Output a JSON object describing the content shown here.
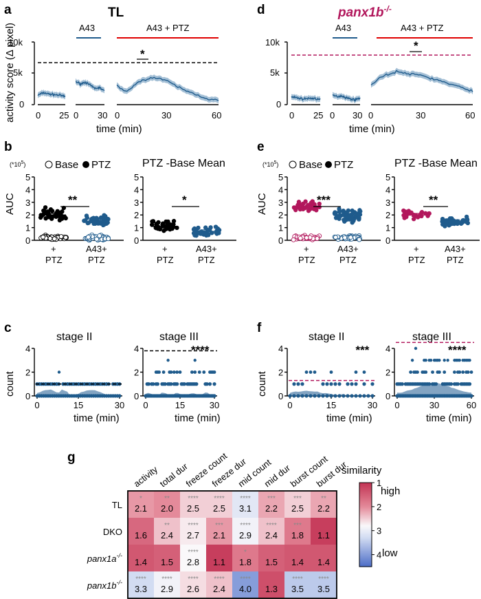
{
  "colors": {
    "tl": "#1f5b8c",
    "tl_fill": "#5a86ad",
    "ko": "#b2175c",
    "black": "#000000",
    "red": "#e00000",
    "blue_line": "#1f5b8c"
  },
  "panels": {
    "a": {
      "letter": "a",
      "title": "TL"
    },
    "d": {
      "letter": "d",
      "title": "panx1b",
      "title_sup": "-/-"
    },
    "b": {
      "letter": "b"
    },
    "e": {
      "letter": "e"
    },
    "c": {
      "letter": "c"
    },
    "f": {
      "letter": "f"
    },
    "g": {
      "letter": "g"
    }
  },
  "top": {
    "ylabel": "activity score (Δ pixel)",
    "xlabel": "time (min)",
    "yticks": [
      "10k",
      "5k",
      "0"
    ],
    "seg1_ticks": [
      "0",
      "25"
    ],
    "seg2_ticks": [
      "0",
      "30"
    ],
    "seg3_ticks": [
      "0",
      "30",
      "60"
    ],
    "bar_a43": "A43",
    "bar_a43ptz": "A43 + PTZ",
    "sig": "*"
  },
  "mid": {
    "ylabel": "AUC",
    "mult": "(*10",
    "mult_sup": "5",
    "mult_end": ")",
    "legend_base": "Base",
    "legend_ptz": "PTZ",
    "title_right": "PTZ -Base Mean",
    "yticks": [
      "5",
      "4",
      "3",
      "2",
      "1",
      "0"
    ],
    "xl1a": "+",
    "xl1b": "PTZ",
    "xl2a": "A43+",
    "xl2b": "PTZ",
    "sig_b1": "**",
    "sig_b2": "*",
    "sig_e1": "***",
    "sig_e2": "**"
  },
  "stage": {
    "t2": "stage II",
    "t3": "stage III",
    "ylabel": "count",
    "xlabel": "time (min)",
    "c_ticks": [
      "0",
      "15",
      "30"
    ],
    "f3_ticks": [
      "0",
      "30",
      "60"
    ],
    "sig_c3": "****",
    "sig_f2": "***",
    "sig_f3": "****"
  },
  "heatmap": {
    "legend_title": "similarity",
    "legend_high": "high",
    "legend_low": "low",
    "legend_ticks": [
      "1",
      "2",
      "3",
      "4"
    ],
    "cols": [
      "activity",
      "total dur",
      "freeze count",
      "freeze dur",
      "mid count",
      "mid dur",
      "burst count",
      "burst dur"
    ],
    "rows": [
      {
        "name": "TL",
        "sup": "",
        "vals": [
          2.1,
          2.0,
          2.5,
          2.5,
          3.1,
          2.2,
          2.5,
          2.2
        ],
        "stars": [
          "*",
          "**",
          "****",
          "****",
          "****",
          "***",
          "***",
          "**"
        ]
      },
      {
        "name": "DKO",
        "sup": "",
        "vals": [
          1.6,
          2.4,
          2.7,
          2.1,
          2.9,
          2.4,
          1.8,
          1.1
        ],
        "stars": [
          "",
          "**",
          "****",
          "***",
          "****",
          "****",
          "***",
          ""
        ]
      },
      {
        "name": "panx1a",
        "sup": "-/-",
        "vals": [
          1.4,
          1.5,
          2.8,
          1.1,
          1.8,
          1.5,
          1.4,
          1.4
        ],
        "stars": [
          "",
          "",
          "****",
          "",
          "*",
          "",
          "",
          ""
        ]
      },
      {
        "name": "panx1b",
        "sup": "-/-",
        "vals": [
          3.3,
          2.9,
          2.6,
          2.4,
          4.0,
          1.3,
          3.5,
          3.5
        ],
        "stars": [
          "****",
          "****",
          "****",
          "****",
          "****",
          "",
          "****",
          "****"
        ]
      }
    ]
  },
  "chart_data": [
    {
      "type": "line",
      "panel": "a",
      "title": "TL",
      "ylabel": "activity score (Δ pixel)",
      "xlabel": "time (min)",
      "ylim": [
        0,
        10000
      ],
      "series": [
        {
          "segment": "baseline",
          "x": [
            0,
            5,
            10,
            15,
            20,
            25
          ],
          "y": [
            1500,
            1900,
            1700,
            1600,
            1500,
            1300
          ]
        },
        {
          "segment": "A43",
          "x": [
            0,
            5,
            10,
            15,
            20,
            25,
            30
          ],
          "y": [
            3700,
            3300,
            3600,
            3100,
            2600,
            2700,
            2200
          ]
        },
        {
          "segment": "A43 + PTZ",
          "x": [
            0,
            5,
            10,
            15,
            20,
            25,
            30,
            35,
            40,
            45,
            50,
            55,
            60
          ],
          "y": [
            3000,
            2100,
            3000,
            3900,
            4300,
            4200,
            3700,
            3000,
            2300,
            1800,
            1300,
            800,
            700
          ]
        }
      ],
      "threshold": 6600,
      "sig": "*"
    },
    {
      "type": "line",
      "panel": "d",
      "title": "panx1b-/-",
      "ylabel": "activity score (Δ pixel)",
      "xlabel": "time (min)",
      "ylim": [
        0,
        10000
      ],
      "series": [
        {
          "segment": "baseline",
          "x": [
            0,
            5,
            10,
            15,
            20,
            25
          ],
          "y": [
            1200,
            1100,
            900,
            1000,
            1000,
            800
          ]
        },
        {
          "segment": "A43",
          "x": [
            0,
            5,
            10,
            15,
            20,
            25,
            30
          ],
          "y": [
            1500,
            1300,
            1400,
            1100,
            900,
            800,
            1100
          ]
        },
        {
          "segment": "A43 + PTZ",
          "x": [
            0,
            5,
            10,
            15,
            20,
            25,
            30,
            35,
            40,
            45,
            50,
            55,
            60
          ],
          "y": [
            3100,
            4300,
            4800,
            5300,
            5000,
            4800,
            4700,
            4200,
            3900,
            3400,
            3000,
            2600,
            2200
          ]
        }
      ],
      "threshold": 7800,
      "sig": "*"
    },
    {
      "type": "scatter",
      "panel": "b-left",
      "ylabel": "AUC",
      "categories": [
        "+ PTZ",
        "A43+ PTZ"
      ],
      "means": [
        {
          "base": 0.2,
          "ptz": 2.0
        },
        {
          "base": 0.2,
          "ptz": 1.5
        }
      ],
      "ylim": [
        0,
        5
      ],
      "sig": "**"
    },
    {
      "type": "scatter",
      "panel": "b-right",
      "title": "PTZ -Base Mean",
      "categories": [
        "+ PTZ",
        "A43+ PTZ"
      ],
      "means": [
        1.1,
        0.7
      ],
      "ylim": [
        0,
        5
      ],
      "sig": "*"
    },
    {
      "type": "scatter",
      "panel": "e-left",
      "ylabel": "AUC",
      "categories": [
        "+ PTZ",
        "A43+ PTZ"
      ],
      "means": [
        {
          "base": 0.2,
          "ptz": 2.7
        },
        {
          "base": 0.2,
          "ptz": 2.0
        }
      ],
      "ylim": [
        0,
        5
      ],
      "sig": "***"
    },
    {
      "type": "scatter",
      "panel": "e-right",
      "title": "PTZ -Base Mean",
      "categories": [
        "+ PTZ",
        "A43+ PTZ"
      ],
      "means": [
        2.0,
        1.5
      ],
      "ylim": [
        0,
        5
      ],
      "sig": "**"
    },
    {
      "type": "scatter",
      "panel": "c-stage II",
      "title": "stage II",
      "ylabel": "count",
      "xlabel": "time (min)",
      "xlim": [
        0,
        30
      ],
      "ylim": [
        0,
        4
      ],
      "threshold": 1.0
    },
    {
      "type": "scatter",
      "panel": "c-stage III",
      "title": "stage III",
      "xlabel": "time (min)",
      "xlim": [
        0,
        30
      ],
      "ylim": [
        0,
        4
      ],
      "threshold": 3.8,
      "sig": "****"
    },
    {
      "type": "scatter",
      "panel": "f-stage II",
      "title": "stage II",
      "ylabel": "count",
      "xlabel": "time (min)",
      "xlim": [
        0,
        30
      ],
      "ylim": [
        0,
        4
      ],
      "threshold": 1.3,
      "sig": "***"
    },
    {
      "type": "scatter",
      "panel": "f-stage III",
      "title": "stage III",
      "xlabel": "time (min)",
      "xlim": [
        0,
        60
      ],
      "ylim": [
        0,
        4.5
      ],
      "threshold": 4.5,
      "sig": "****"
    },
    {
      "type": "heatmap",
      "panel": "g",
      "legend": "similarity",
      "scale": [
        1,
        4.5
      ]
    }
  ]
}
